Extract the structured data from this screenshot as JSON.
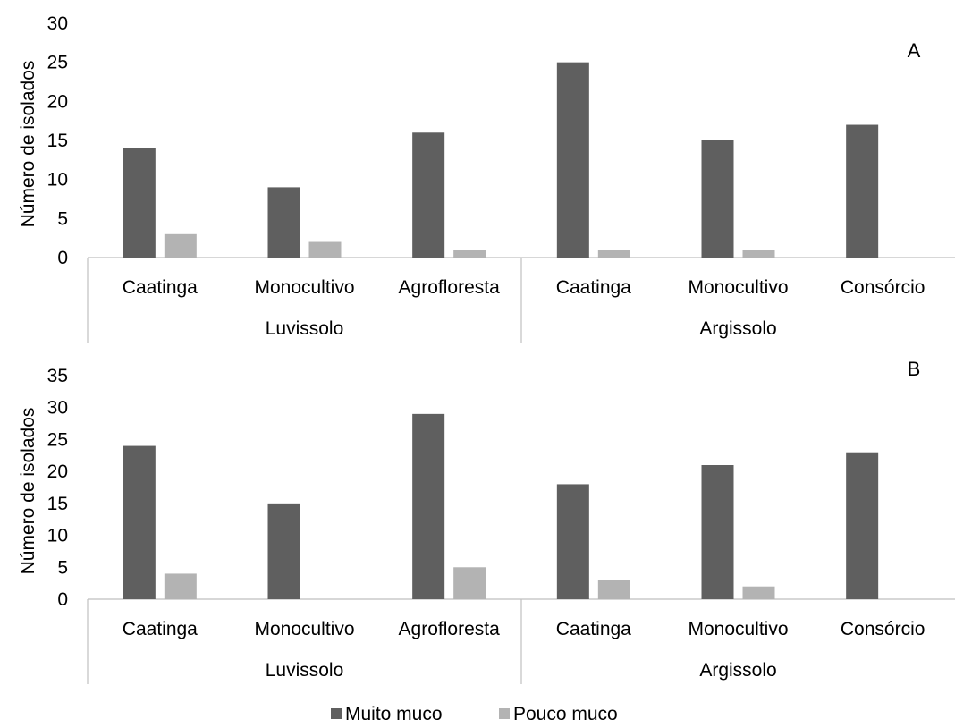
{
  "chart_data": [
    {
      "type": "bar",
      "panel_label": "A",
      "ylabel": "Número de isolados",
      "ylim": [
        0,
        30
      ],
      "yticks": [
        0,
        5,
        10,
        15,
        20,
        25,
        30
      ],
      "groups": [
        {
          "name": "Luvissolo",
          "categories": [
            "Caatinga",
            "Monocultivo",
            "Agrofloresta"
          ]
        },
        {
          "name": "Argissolo",
          "categories": [
            "Caatinga",
            "Monocultivo",
            "Consórcio"
          ]
        }
      ],
      "categories": [
        "Caatinga",
        "Monocultivo",
        "Agrofloresta",
        "Caatinga",
        "Monocultivo",
        "Consórcio"
      ],
      "series": [
        {
          "name": "Muito muco",
          "values": [
            14,
            9,
            16,
            25,
            15,
            17
          ]
        },
        {
          "name": "Pouco muco",
          "values": [
            3,
            2,
            1,
            1,
            1,
            0
          ]
        }
      ]
    },
    {
      "type": "bar",
      "panel_label": "B",
      "ylabel": "Número de isolados",
      "ylim": [
        0,
        35
      ],
      "yticks": [
        0,
        5,
        10,
        15,
        20,
        25,
        30,
        35
      ],
      "groups": [
        {
          "name": "Luvissolo",
          "categories": [
            "Caatinga",
            "Monocultivo",
            "Agrofloresta"
          ]
        },
        {
          "name": "Argissolo",
          "categories": [
            "Caatinga",
            "Monocultivo",
            "Consórcio"
          ]
        }
      ],
      "categories": [
        "Caatinga",
        "Monocultivo",
        "Agrofloresta",
        "Caatinga",
        "Monocultivo",
        "Consórcio"
      ],
      "series": [
        {
          "name": "Muito muco",
          "values": [
            24,
            15,
            29,
            18,
            21,
            23
          ]
        },
        {
          "name": "Pouco muco",
          "values": [
            4,
            0,
            5,
            3,
            2,
            0
          ]
        }
      ]
    }
  ],
  "legend": {
    "position": "bottom-center",
    "items": [
      {
        "name": "Muito muco",
        "color": "#5f5f5f"
      },
      {
        "name": "Pouco muco",
        "color": "#b3b3b3"
      }
    ]
  },
  "colors": {
    "series_dark": "#5f5f5f",
    "series_light": "#b3b3b3",
    "axis": "#bfbfbf"
  }
}
